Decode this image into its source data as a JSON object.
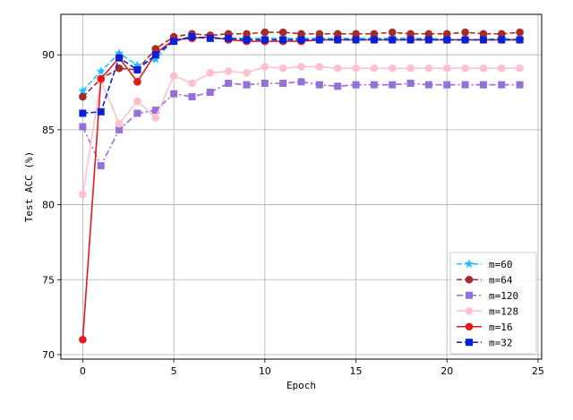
{
  "chart_data": {
    "type": "line",
    "title": "",
    "xlabel": "Epoch",
    "ylabel": "Test ACC (%)",
    "xlim": [
      -1.2,
      25.2
    ],
    "ylim": [
      69.7,
      92.7
    ],
    "xticks": [
      "0",
      "5",
      "10",
      "15",
      "20",
      "25"
    ],
    "yticks": [
      "70",
      "75",
      "80",
      "85",
      "90"
    ],
    "grid": true,
    "legend_position": "lower-right",
    "x": [
      0,
      1,
      2,
      3,
      4,
      5,
      6,
      7,
      8,
      9,
      10,
      11,
      12,
      13,
      14,
      15,
      16,
      17,
      18,
      19,
      20,
      21,
      22,
      23,
      24
    ],
    "series": [
      {
        "name": "m=60",
        "color": "#1fbfff",
        "line_style": "dashed",
        "marker": "star",
        "values": [
          87.6,
          88.9,
          90.1,
          89.3,
          89.7,
          91.0,
          91.2,
          91.1,
          91.1,
          91.1,
          91.1,
          91.1,
          91.1,
          91.1,
          91.1,
          91.1,
          91.1,
          91.1,
          91.1,
          91.1,
          91.0,
          91.0,
          91.0,
          91.1,
          91.0
        ]
      },
      {
        "name": "m=64",
        "color": "#a52a2a",
        "line_style": "dashed",
        "marker": "circle",
        "values": [
          87.2,
          88.4,
          89.1,
          89.0,
          90.4,
          91.2,
          91.4,
          91.3,
          91.4,
          91.4,
          91.5,
          91.5,
          91.4,
          91.4,
          91.4,
          91.4,
          91.4,
          91.5,
          91.4,
          91.4,
          91.4,
          91.5,
          91.4,
          91.4,
          91.5
        ]
      },
      {
        "name": "m=120",
        "color": "#9370db",
        "line_style": "dashdot",
        "marker": "square",
        "values": [
          85.2,
          82.6,
          85.0,
          86.1,
          86.3,
          87.4,
          87.2,
          87.5,
          88.1,
          88.0,
          88.1,
          88.1,
          88.2,
          88.0,
          87.9,
          88.0,
          88.0,
          88.0,
          88.1,
          88.0,
          88.0,
          88.0,
          88.0,
          88.0,
          88.0
        ]
      },
      {
        "name": "m=128",
        "color": "#ffc0cb",
        "line_style": "solid",
        "marker": "circle",
        "values": [
          80.7,
          88.3,
          85.4,
          86.9,
          85.8,
          88.6,
          88.1,
          88.8,
          88.9,
          88.8,
          89.2,
          89.1,
          89.2,
          89.2,
          89.1,
          89.1,
          89.1,
          89.1,
          89.1,
          89.1,
          89.1,
          89.1,
          89.1,
          89.1,
          89.1
        ]
      },
      {
        "name": "m=16",
        "color": "#e31a1a",
        "line_style": "solid",
        "marker": "circle",
        "values": [
          71.0,
          88.4,
          89.8,
          88.2,
          90.1,
          91.0,
          91.1,
          91.2,
          91.0,
          90.9,
          90.9,
          90.9,
          90.9,
          91.0,
          91.0,
          91.0,
          91.0,
          91.0,
          91.0,
          91.0,
          91.0,
          91.0,
          91.0,
          91.0,
          91.0
        ]
      },
      {
        "name": "m=32",
        "color": "#0a1fd6",
        "line_style": "dashed",
        "marker": "square",
        "values": [
          86.1,
          86.2,
          89.8,
          89.0,
          90.0,
          90.9,
          91.2,
          91.1,
          91.1,
          91.0,
          91.0,
          91.0,
          91.0,
          91.0,
          91.0,
          91.0,
          91.0,
          91.0,
          91.0,
          91.0,
          91.0,
          91.0,
          91.0,
          91.0,
          91.0
        ]
      }
    ]
  }
}
